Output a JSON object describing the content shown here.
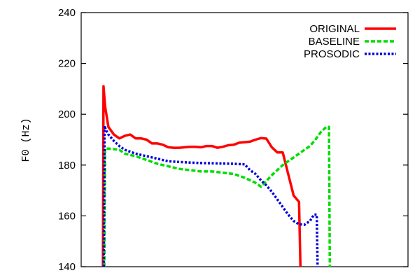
{
  "chart_data": {
    "type": "line",
    "title": "",
    "xlabel": "",
    "ylabel": "F0  (Hz)",
    "xlim": [
      0,
      120
    ],
    "ylim": [
      140,
      240
    ],
    "yticks": [
      140,
      160,
      180,
      200,
      220,
      240
    ],
    "legend": "top-right",
    "grid": false,
    "series": [
      {
        "name": "ORIGINAL",
        "color": "#ff0000",
        "dash": "solid",
        "points": [
          [
            8,
            140
          ],
          [
            8.2,
            211
          ],
          [
            8.8,
            203
          ],
          [
            10,
            195
          ],
          [
            12,
            192
          ],
          [
            14,
            190.5
          ],
          [
            16,
            191.5
          ],
          [
            18,
            192
          ],
          [
            20,
            190.5
          ],
          [
            22,
            190.5
          ],
          [
            24,
            190
          ],
          [
            26,
            188.5
          ],
          [
            28,
            188.5
          ],
          [
            30,
            188
          ],
          [
            32,
            187
          ],
          [
            34,
            186.8
          ],
          [
            36,
            186.8
          ],
          [
            38,
            187
          ],
          [
            40,
            187.2
          ],
          [
            42,
            187.2
          ],
          [
            44,
            187
          ],
          [
            46,
            187.5
          ],
          [
            48,
            187.5
          ],
          [
            50,
            186.8
          ],
          [
            52,
            187.2
          ],
          [
            54,
            187.8
          ],
          [
            56,
            188
          ],
          [
            58,
            188.8
          ],
          [
            60,
            189
          ],
          [
            62,
            189.2
          ],
          [
            64,
            190
          ],
          [
            66,
            190.6
          ],
          [
            68,
            190.4
          ],
          [
            70,
            187
          ],
          [
            72,
            185
          ],
          [
            74,
            185
          ],
          [
            78,
            168
          ],
          [
            80,
            165.5
          ],
          [
            80.5,
            140
          ]
        ]
      },
      {
        "name": "BASELINE",
        "color": "#00dd00",
        "dash": "dashed",
        "points": [
          [
            8.5,
            140
          ],
          [
            8.8,
            186.5
          ],
          [
            10,
            186.5
          ],
          [
            14,
            186
          ],
          [
            16,
            184.5
          ],
          [
            20,
            183.5
          ],
          [
            24,
            182
          ],
          [
            28,
            180.5
          ],
          [
            32,
            179.5
          ],
          [
            36,
            178.5
          ],
          [
            40,
            178
          ],
          [
            44,
            177.5
          ],
          [
            48,
            177.5
          ],
          [
            52,
            177
          ],
          [
            56,
            176.5
          ],
          [
            60,
            175
          ],
          [
            64,
            173
          ],
          [
            66,
            171.5
          ],
          [
            70,
            176
          ],
          [
            74,
            180
          ],
          [
            78,
            183
          ],
          [
            82,
            186
          ],
          [
            84,
            187.5
          ],
          [
            86,
            190
          ],
          [
            88,
            193
          ],
          [
            90,
            195
          ],
          [
            91,
            195
          ],
          [
            91.3,
            140
          ]
        ]
      },
      {
        "name": "PROSODIC",
        "color": "#0000dd",
        "dash": "dotted",
        "points": [
          [
            8.3,
            140
          ],
          [
            8.6,
            195.5
          ],
          [
            9,
            194
          ],
          [
            10,
            192
          ],
          [
            12,
            189.5
          ],
          [
            14,
            187.5
          ],
          [
            16,
            186
          ],
          [
            20,
            184.5
          ],
          [
            24,
            183.5
          ],
          [
            28,
            182.5
          ],
          [
            32,
            181.5
          ],
          [
            36,
            181.2
          ],
          [
            40,
            181
          ],
          [
            44,
            180.8
          ],
          [
            48,
            180.7
          ],
          [
            52,
            180.6
          ],
          [
            56,
            180.5
          ],
          [
            60,
            180.3
          ],
          [
            62,
            178
          ],
          [
            64,
            176.5
          ],
          [
            66,
            174
          ],
          [
            68,
            172
          ],
          [
            70,
            169.5
          ],
          [
            72,
            166.5
          ],
          [
            74,
            163.5
          ],
          [
            76,
            160.5
          ],
          [
            78,
            158
          ],
          [
            80,
            156.7
          ],
          [
            82,
            156.5
          ],
          [
            84,
            158
          ],
          [
            85.5,
            160.5
          ],
          [
            86.5,
            160.5
          ],
          [
            86.8,
            140
          ]
        ]
      }
    ]
  }
}
